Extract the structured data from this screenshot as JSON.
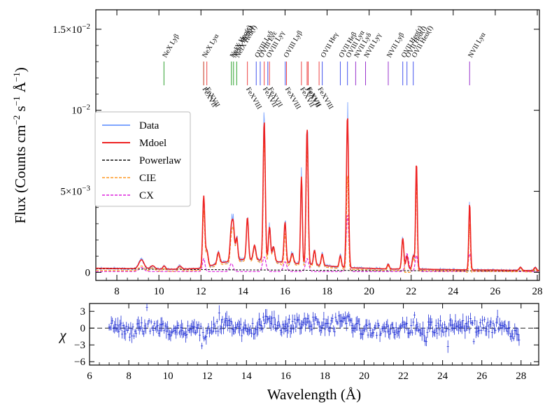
{
  "chart_data": {
    "type": "line",
    "top_panel": {
      "ylabel": "Flux (Counts cm⁻² s⁻¹ Å⁻¹)",
      "ylabel_parts": [
        "Flux (Counts cm",
        "−2",
        " s",
        "−1",
        " Å",
        "−1",
        ")"
      ],
      "xlim": [
        7.0,
        28.1
      ],
      "ylim": [
        -0.0005,
        0.0162
      ],
      "y_ticks": [
        {
          "value": 0,
          "label": "0"
        },
        {
          "value": 0.005,
          "label": "5×10⁻³",
          "base": "5×10",
          "exp": "−3"
        },
        {
          "value": 0.01,
          "label": "10⁻²",
          "base": "10",
          "exp": "−2"
        },
        {
          "value": 0.015,
          "label": "1.5×10⁻²",
          "base": "1.5×10",
          "exp": "−2"
        }
      ],
      "x_ticks": [
        8,
        10,
        12,
        14,
        16,
        18,
        20,
        22,
        24,
        26,
        28
      ],
      "continuum": [
        [
          7.0,
          0.00025
        ],
        [
          8.0,
          0.00024
        ],
        [
          9.0,
          0.00023
        ],
        [
          10.0,
          0.0002
        ],
        [
          11.0,
          0.00019
        ],
        [
          12.0,
          0.00025
        ],
        [
          13.0,
          0.0006
        ],
        [
          14.0,
          0.0008
        ],
        [
          15.0,
          0.00075
        ],
        [
          16.0,
          0.0006
        ],
        [
          17.0,
          0.0005
        ],
        [
          18.0,
          0.0004
        ],
        [
          19.0,
          0.00028
        ],
        [
          20.0,
          0.00025
        ],
        [
          21.0,
          0.0002
        ],
        [
          22.0,
          0.00022
        ],
        [
          23.0,
          0.00018
        ],
        [
          24.0,
          0.00016
        ],
        [
          26.0,
          0.00014
        ],
        [
          28.0,
          0.0001
        ]
      ],
      "peaks": [
        {
          "x": 9.17,
          "h": 0.00055,
          "w": 0.12
        },
        {
          "x": 9.7,
          "h": 0.0002,
          "w": 0.1
        },
        {
          "x": 10.25,
          "h": 0.0002,
          "w": 0.06
        },
        {
          "x": 11.0,
          "h": 0.0002,
          "w": 0.08
        },
        {
          "x": 12.13,
          "h": 0.0044,
          "w": 0.05
        },
        {
          "x": 12.28,
          "h": 0.001,
          "w": 0.06
        },
        {
          "x": 12.83,
          "h": 0.0007,
          "w": 0.06
        },
        {
          "x": 13.45,
          "h": 0.0021,
          "w": 0.06
        },
        {
          "x": 13.55,
          "h": 0.0018,
          "w": 0.05
        },
        {
          "x": 13.7,
          "h": 0.0014,
          "w": 0.05
        },
        {
          "x": 14.21,
          "h": 0.0026,
          "w": 0.05
        },
        {
          "x": 14.55,
          "h": 0.0009,
          "w": 0.06
        },
        {
          "x": 15.01,
          "h": 0.0086,
          "w": 0.05
        },
        {
          "x": 15.26,
          "h": 0.0021,
          "w": 0.05
        },
        {
          "x": 15.45,
          "h": 0.0009,
          "w": 0.06
        },
        {
          "x": 16.0,
          "h": 0.0025,
          "w": 0.05
        },
        {
          "x": 16.34,
          "h": 0.0006,
          "w": 0.06
        },
        {
          "x": 16.78,
          "h": 0.0054,
          "w": 0.04
        },
        {
          "x": 17.05,
          "h": 0.0084,
          "w": 0.05
        },
        {
          "x": 17.4,
          "h": 0.0009,
          "w": 0.05
        },
        {
          "x": 17.77,
          "h": 0.0007,
          "w": 0.05
        },
        {
          "x": 18.63,
          "h": 0.0007,
          "w": 0.05
        },
        {
          "x": 18.97,
          "h": 0.0094,
          "w": 0.05
        },
        {
          "x": 20.91,
          "h": 0.0003,
          "w": 0.05
        },
        {
          "x": 21.6,
          "h": 0.0019,
          "w": 0.05
        },
        {
          "x": 21.8,
          "h": 0.0008,
          "w": 0.05
        },
        {
          "x": 22.1,
          "h": 0.0008,
          "w": 0.05
        },
        {
          "x": 22.25,
          "h": 0.0066,
          "w": 0.04
        },
        {
          "x": 24.78,
          "h": 0.0041,
          "w": 0.04
        },
        {
          "x": 27.2,
          "h": 0.0002,
          "w": 0.06
        },
        {
          "x": 27.9,
          "h": 0.0002,
          "w": 0.06
        }
      ],
      "powerlaw": [
        [
          7.0,
          0.00022
        ],
        [
          10.0,
          0.00019
        ],
        [
          14.0,
          0.00015
        ],
        [
          18.0,
          0.00012
        ],
        [
          22.0,
          0.0001
        ],
        [
          28.0,
          8e-05
        ]
      ],
      "cx_peaks": [
        {
          "x": 9.17,
          "h": 0.00025,
          "w": 0.12
        },
        {
          "x": 12.13,
          "h": 0.0008,
          "w": 0.06
        },
        {
          "x": 13.45,
          "h": 0.0005,
          "w": 0.08
        },
        {
          "x": 15.01,
          "h": 0.0009,
          "w": 0.08
        },
        {
          "x": 16.0,
          "h": 0.0006,
          "w": 0.08
        },
        {
          "x": 17.05,
          "h": 0.0008,
          "w": 0.08
        },
        {
          "x": 18.97,
          "h": 0.0035,
          "w": 0.06
        },
        {
          "x": 21.8,
          "h": 0.0011,
          "w": 0.08
        },
        {
          "x": 22.25,
          "h": 0.001,
          "w": 0.06
        },
        {
          "x": 24.78,
          "h": 0.0011,
          "w": 0.06
        }
      ],
      "cx_baseline": 5e-05
    },
    "bottom_panel": {
      "ylabel": "χ",
      "xlabel": "Wavelength (Å)",
      "xlim": [
        6.0,
        28.9
      ],
      "ylim": [
        -6.6,
        4.4
      ],
      "y_ticks": [
        {
          "value": 3,
          "label": "3"
        },
        {
          "value": 0,
          "label": "0"
        },
        {
          "value": -3,
          "label": "−3"
        },
        {
          "value": -6,
          "label": "−6"
        }
      ],
      "x_ticks": [
        6,
        8,
        10,
        12,
        14,
        16,
        18,
        20,
        22,
        24,
        26,
        28
      ],
      "residual_trend": [
        [
          7.0,
          0.3
        ],
        [
          8.0,
          -0.6
        ],
        [
          9.0,
          0.4
        ],
        [
          10.0,
          -0.4
        ],
        [
          11.0,
          -0.2
        ],
        [
          12.0,
          -0.8
        ],
        [
          13.0,
          1.2
        ],
        [
          14.0,
          -0.6
        ],
        [
          15.0,
          1.0
        ],
        [
          16.0,
          0.3
        ],
        [
          17.0,
          1.2
        ],
        [
          18.0,
          0.4
        ],
        [
          19.0,
          1.5
        ],
        [
          20.0,
          -0.2
        ],
        [
          21.0,
          -0.4
        ],
        [
          22.0,
          0.3
        ],
        [
          23.0,
          -0.2
        ],
        [
          24.0,
          0.4
        ],
        [
          25.0,
          0.6
        ],
        [
          26.0,
          0.4
        ],
        [
          27.0,
          0.2
        ],
        [
          27.8,
          -1.5
        ]
      ]
    },
    "line_ids": {
      "upper": [
        {
          "x": 10.24,
          "label": "NeX Lyβ",
          "color": "#2ca02c"
        },
        {
          "x": 12.13,
          "label": "NeX Lyα",
          "color": "#2ca02c"
        },
        {
          "x": 13.45,
          "label": "NeIX Heα(r)",
          "color": "#2ca02c"
        },
        {
          "x": 13.55,
          "label": "NeIX Heα(i)",
          "color": "#2ca02c"
        },
        {
          "x": 13.7,
          "label": "NeIX Heα(f)",
          "color": "#2ca02c"
        },
        {
          "x": 14.82,
          "label": "OVIII Lyε",
          "color": "#4455ee"
        },
        {
          "x": 14.63,
          "label": "OVIII Lyδ",
          "color": "#4455ee"
        },
        {
          "x": 15.18,
          "label": "OVIII Lyγ",
          "color": "#4455ee"
        },
        {
          "x": 16.01,
          "label": "OVIII Lyβ",
          "color": "#4455ee"
        },
        {
          "x": 17.77,
          "label": "OVII Heγ",
          "color": "#4455ee"
        },
        {
          "x": 18.63,
          "label": "OVII Heβ",
          "color": "#4455ee"
        },
        {
          "x": 18.97,
          "label": "OVIII Lyα",
          "color": "#4455ee"
        },
        {
          "x": 19.36,
          "label": "NVII Lyδ",
          "color": "#9933cc"
        },
        {
          "x": 19.83,
          "label": "NVII Lyγ",
          "color": "#9933cc"
        },
        {
          "x": 20.91,
          "label": "NVII Lyβ",
          "color": "#9933cc"
        },
        {
          "x": 21.6,
          "label": "OVII Heα(r)",
          "color": "#4455ee"
        },
        {
          "x": 21.8,
          "label": "OVII Heα(i)",
          "color": "#4455ee"
        },
        {
          "x": 22.1,
          "label": "OVII Heα(f)",
          "color": "#4455ee"
        },
        {
          "x": 24.78,
          "label": "NVII Lyα",
          "color": "#9933cc"
        }
      ],
      "lower": [
        {
          "x": 12.13,
          "label": "FeXVII",
          "color": "#ee4444"
        },
        {
          "x": 12.28,
          "label": "FeXVII",
          "color": "#ee4444"
        },
        {
          "x": 14.21,
          "label": "FeXVIII",
          "color": "#ee4444"
        },
        {
          "x": 15.01,
          "label": "FeXVII",
          "color": "#ee4444"
        },
        {
          "x": 15.26,
          "label": "FeXVII",
          "color": "#ee4444"
        },
        {
          "x": 16.07,
          "label": "FeXVIII",
          "color": "#ee4444"
        },
        {
          "x": 16.78,
          "label": "FeXVII",
          "color": "#ee4444"
        },
        {
          "x": 17.05,
          "label": "FeXVII",
          "color": "#ee4444"
        },
        {
          "x": 17.1,
          "label": "FeXVII",
          "color": "#ee4444"
        },
        {
          "x": 17.62,
          "label": "FeXVIII",
          "color": "#ee4444"
        }
      ]
    },
    "legend": {
      "position": "center-left",
      "entries": [
        {
          "label": "Data",
          "color": "#7fa6ff",
          "style": "solid"
        },
        {
          "label": "Mdoel",
          "color": "#ee2222",
          "style": "solid"
        },
        {
          "label": "Powerlaw",
          "color": "#111111",
          "style": "dashed"
        },
        {
          "label": "CIE",
          "color": "#ff9922",
          "style": "dashed"
        },
        {
          "label": "CX",
          "color": "#dd22dd",
          "style": "dashed"
        }
      ]
    },
    "colors": {
      "data": "#7fa6ff",
      "model": "#ee2222",
      "powerlaw": "#111111",
      "cie": "#ff9922",
      "cx": "#dd22dd",
      "residuals": "#1f2fd6"
    }
  }
}
